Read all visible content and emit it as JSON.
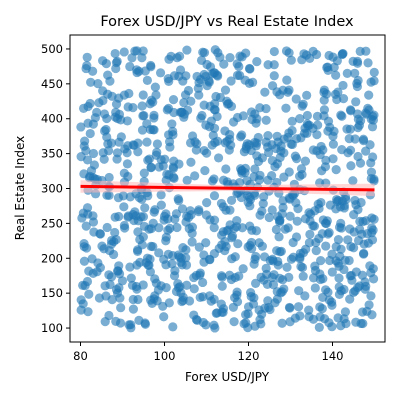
{
  "chart_data": {
    "type": "scatter",
    "title": "Forex USD/JPY vs Real Estate Index",
    "xlabel": "Forex USD/JPY",
    "ylabel": "Real Estate Index",
    "xlim": [
      77.5,
      152.5
    ],
    "ylim": [
      80,
      520
    ],
    "xticks": [
      80,
      100,
      120,
      140
    ],
    "yticks": [
      100,
      150,
      200,
      250,
      300,
      350,
      400,
      450,
      500
    ],
    "grid": false,
    "legend": "none",
    "n_points": 1000,
    "point_x_range": [
      80,
      150
    ],
    "point_y_range": [
      100,
      500
    ],
    "point_color": "#1f77b4",
    "point_alpha": 0.6,
    "regression": {
      "x": [
        80,
        150
      ],
      "y": [
        303,
        298
      ],
      "color": "#ff0000",
      "ci_color": "#ffb6b6"
    }
  }
}
